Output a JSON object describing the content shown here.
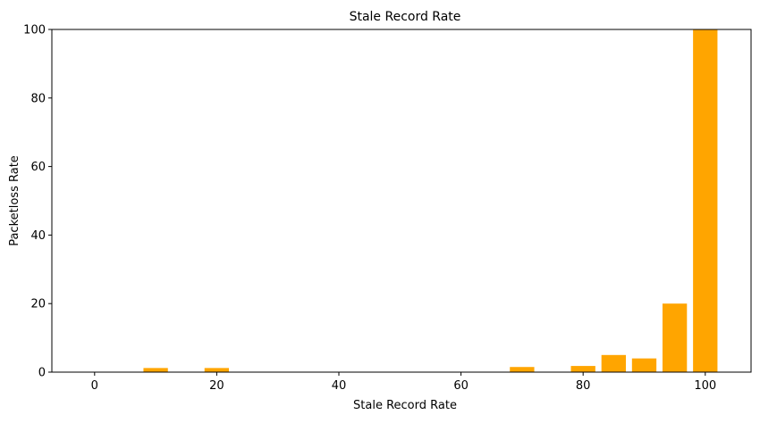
{
  "chart_data": {
    "type": "bar",
    "title": "Stale Record Rate",
    "xlabel": "Stale Record Rate",
    "ylabel": "Packetloss Rate",
    "x": [
      10,
      20,
      70,
      80,
      85,
      90,
      95,
      100
    ],
    "values": [
      1.2,
      1.2,
      1.5,
      1.8,
      5.0,
      4.0,
      20.0,
      100.0
    ],
    "bar_width": 4,
    "xlim": [
      -7,
      107.5
    ],
    "ylim": [
      0,
      100
    ],
    "xticks": [
      0,
      20,
      40,
      60,
      80,
      100
    ],
    "yticks": [
      0,
      20,
      40,
      60,
      80,
      100
    ],
    "bar_color": "#FFA500",
    "grid": false,
    "legend": "none"
  }
}
